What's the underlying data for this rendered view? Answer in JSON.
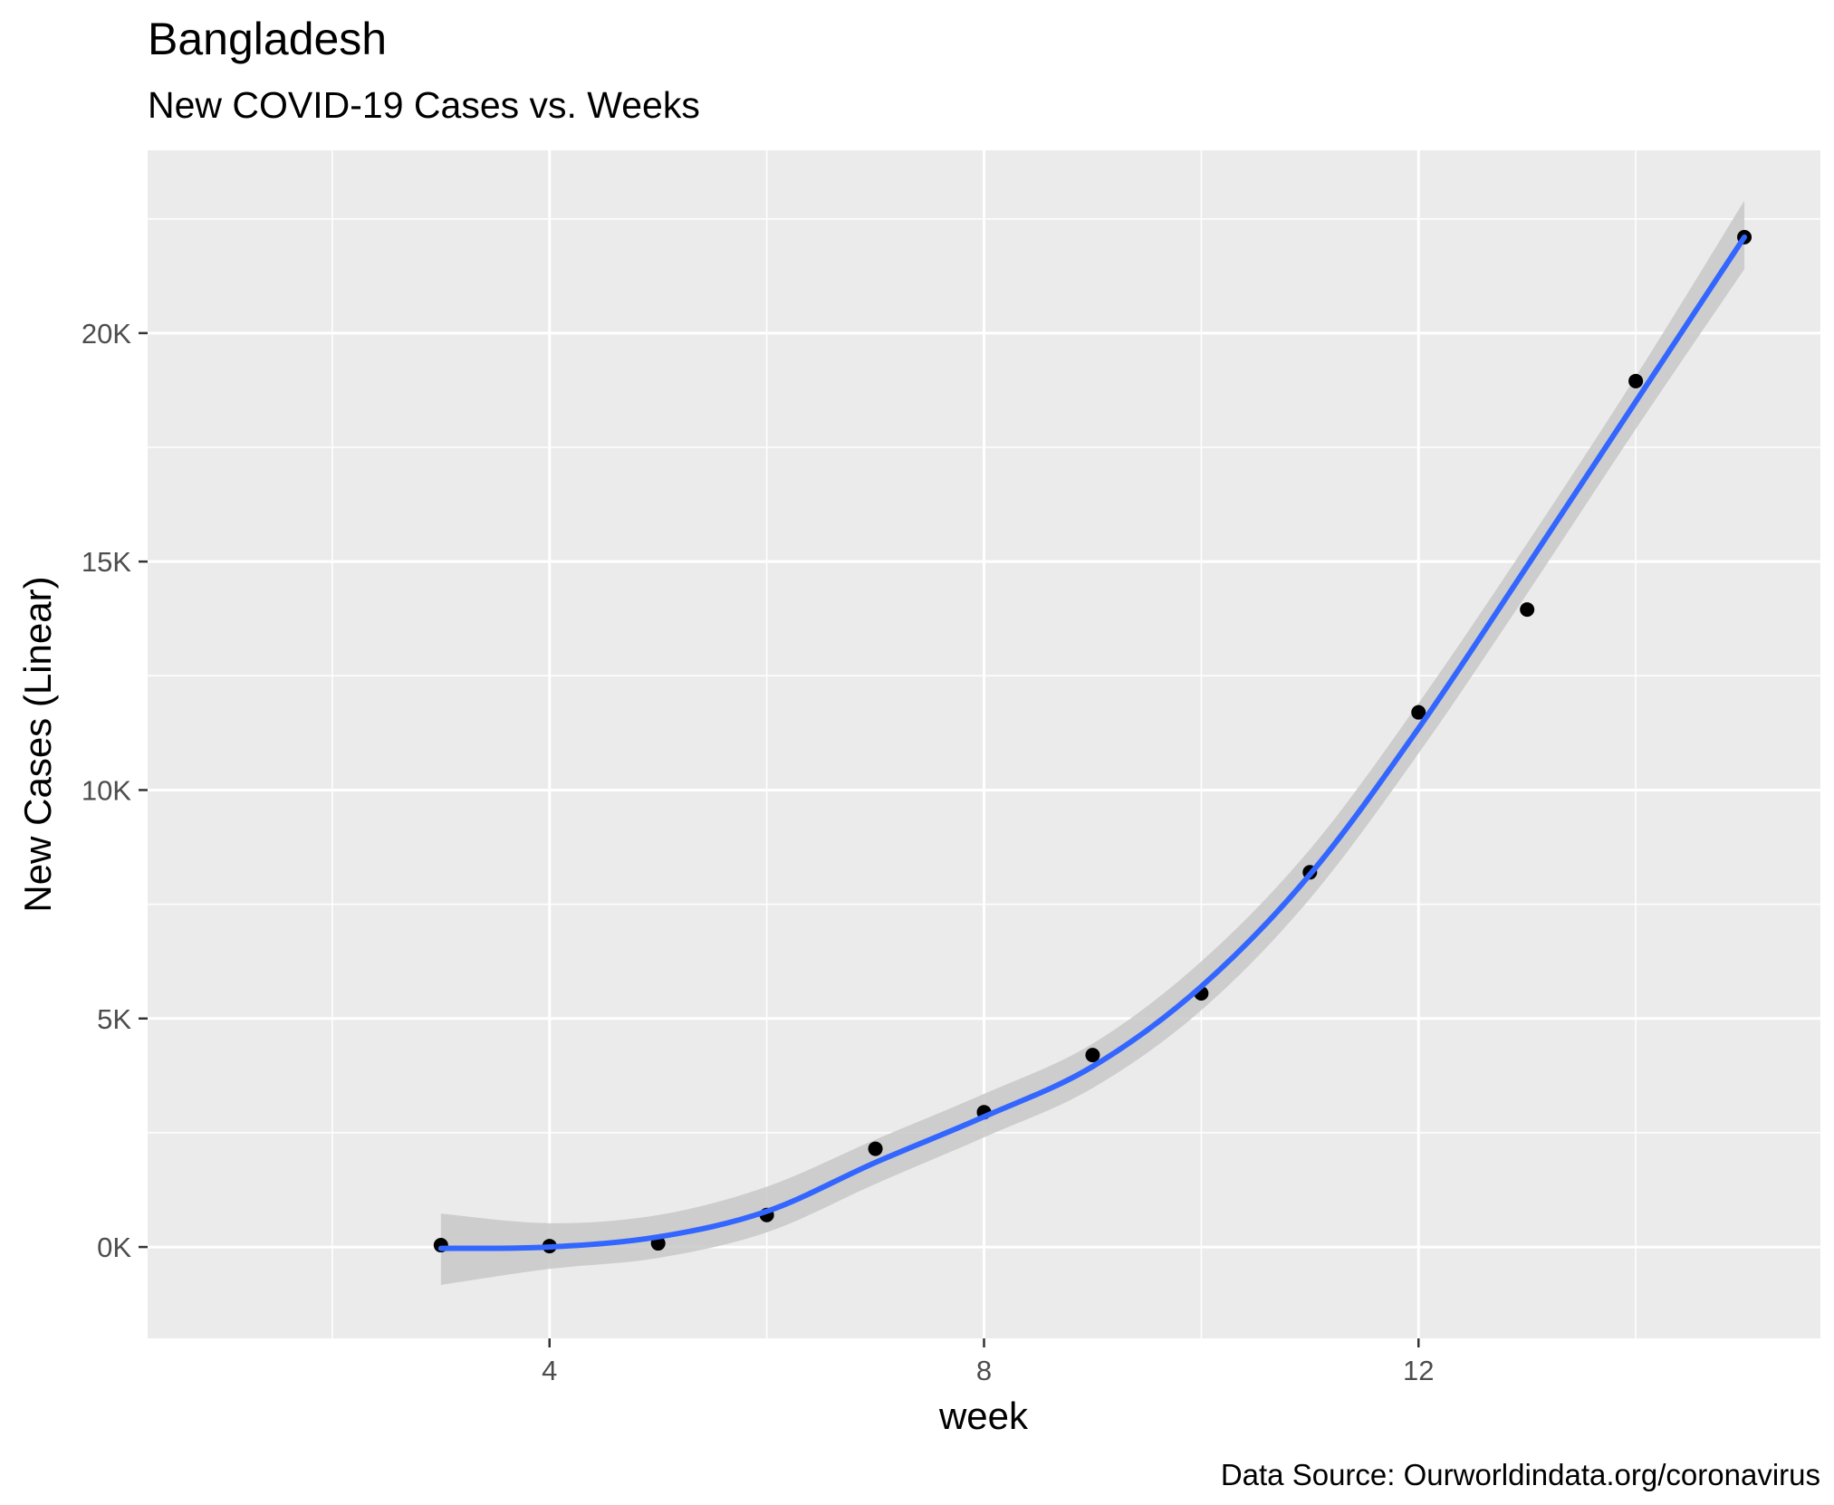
{
  "chart_data": {
    "type": "scatter",
    "title": "Bangladesh",
    "subtitle": "New COVID-19 Cases vs. Weeks",
    "xlabel": "week",
    "ylabel": "New Cases (Linear)",
    "caption": "Data Source: Ourworldindata.org/coronavirus",
    "xlim": [
      0.3,
      15.7
    ],
    "ylim": [
      -2000,
      24000
    ],
    "x_ticks": [
      4,
      8,
      12
    ],
    "x_tick_labels": [
      "4",
      "8",
      "12"
    ],
    "y_ticks": [
      0,
      5000,
      10000,
      15000,
      20000
    ],
    "y_tick_labels": [
      "0K",
      "5K",
      "10K",
      "15K",
      "20K"
    ],
    "grid": true,
    "legend": "none",
    "points": {
      "x": [
        3,
        4,
        5,
        6,
        7,
        8,
        9,
        10,
        11,
        12,
        13,
        14,
        15
      ],
      "y": [
        40,
        20,
        80,
        700,
        2150,
        2950,
        4200,
        5550,
        8200,
        11700,
        13950,
        18950,
        22100
      ]
    },
    "smooth": {
      "x": [
        3,
        4,
        5,
        6,
        7,
        8,
        9,
        10,
        11,
        12,
        13,
        14,
        15
      ],
      "y": [
        -30,
        0,
        220,
        780,
        1850,
        2850,
        3950,
        5700,
        8150,
        11350,
        14900,
        18500,
        22100
      ],
      "band_upper": [
        730,
        520,
        700,
        1320,
        2350,
        3350,
        4450,
        6250,
        8700,
        11900,
        15400,
        19050,
        22900
      ],
      "band_lower": [
        -830,
        -480,
        -240,
        320,
        1380,
        2400,
        3480,
        5180,
        7620,
        10800,
        14300,
        17900,
        21400
      ]
    },
    "colors": {
      "panel": "#ebebeb",
      "grid": "#ffffff",
      "line": "#3366ff",
      "band": "#c8c8c8",
      "point": "#000000"
    }
  }
}
